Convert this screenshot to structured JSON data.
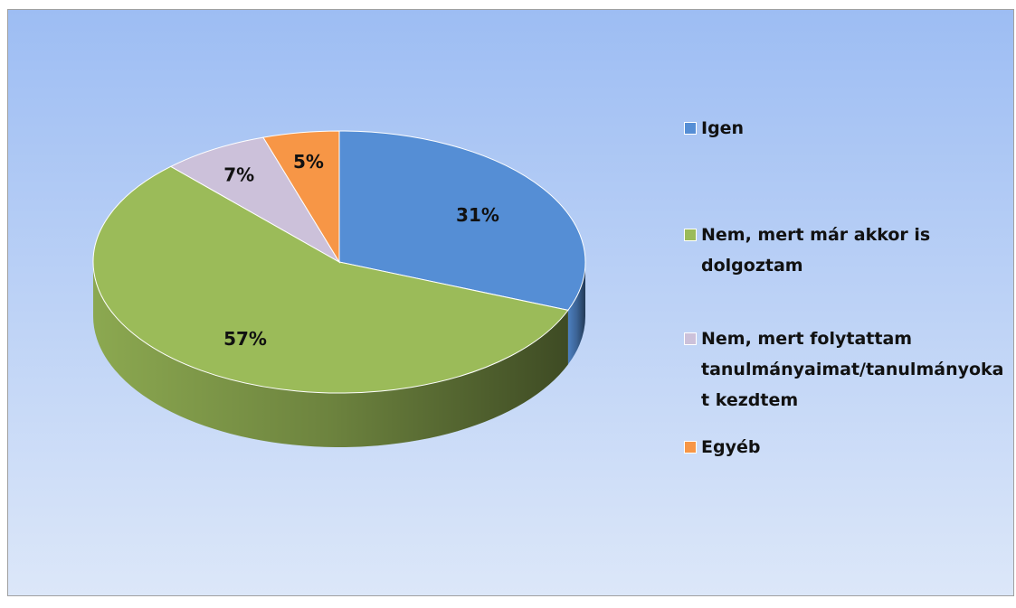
{
  "chart_data": {
    "type": "pie",
    "categories": [
      "Igen",
      "Nem, mert már akkor is dolgoztam",
      "Nem, mert folytattam tanulmányaimat/tanulmányokat kezdtem",
      "Egyéb"
    ],
    "values": [
      31,
      57,
      7,
      5
    ],
    "value_labels": [
      "31%",
      "57%",
      "7%",
      "5%"
    ],
    "colors": [
      "#558ed5",
      "#9bbb59",
      "#ccc1da",
      "#f79646"
    ],
    "legend": "right"
  }
}
